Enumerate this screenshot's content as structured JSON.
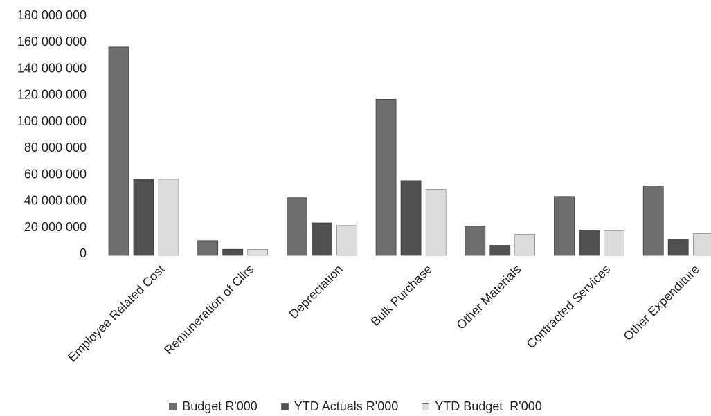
{
  "chart_data": {
    "type": "bar",
    "categories": [
      "Employee Related Cost",
      "Remuneration of Cllrs",
      "Depreciation",
      "Bulk Purchase",
      "Other Materials",
      "Contracted Services",
      "Other Expenditure"
    ],
    "series": [
      {
        "name": "Budget R'000",
        "color": "#6e6e6e",
        "values": [
          156000000,
          9500000,
          42000000,
          116500000,
          20500000,
          43000000,
          51000000
        ]
      },
      {
        "name": "YTD Actuals R'000",
        "color": "#505050",
        "values": [
          56000000,
          3000000,
          23000000,
          55000000,
          6000000,
          17000000,
          10500000
        ]
      },
      {
        "name": "YTD Budget  R'000",
        "color": "#dcdcdc",
        "values": [
          56000000,
          3000000,
          21000000,
          48500000,
          14500000,
          17000000,
          15000000
        ]
      }
    ],
    "y_ticks": [
      "0",
      "20 000 000",
      "40 000 000",
      "60 000 000",
      "80 000 000",
      "100 000 000",
      "120 000 000",
      "140 000 000",
      "160 000 000",
      "180 000 000"
    ],
    "ylim": [
      0,
      180000000
    ],
    "title": "",
    "xlabel": "",
    "ylabel": "",
    "grid": false,
    "legend_position": "bottom"
  }
}
